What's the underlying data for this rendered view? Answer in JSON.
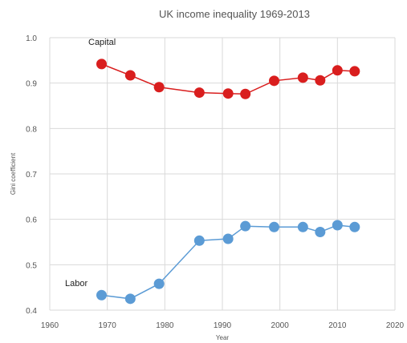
{
  "chart_data": {
    "type": "line",
    "title": "UK income inequality 1969-2013",
    "xlabel": "Year",
    "ylabel": "Gini coefficient",
    "xlim": [
      1960,
      2020
    ],
    "ylim": [
      0.4,
      1.0
    ],
    "xticks": [
      1960,
      1970,
      1980,
      1990,
      2000,
      2010,
      2020
    ],
    "yticks": [
      "0.4",
      "0.5",
      "0.6",
      "0.7",
      "0.8",
      "0.9",
      "1.0"
    ],
    "grid": true,
    "legend": "none",
    "series": [
      {
        "name": "Capital",
        "color": "#d91e1e",
        "x": [
          1969,
          1974,
          1979,
          1986,
          1991,
          1994,
          1999,
          2004,
          2007,
          2010,
          2013
        ],
        "y": [
          0.942,
          0.917,
          0.891,
          0.879,
          0.877,
          0.876,
          0.905,
          0.912,
          0.906,
          0.928,
          0.926
        ]
      },
      {
        "name": "Labor",
        "color": "#5b9bd5",
        "x": [
          1969,
          1974,
          1979,
          1986,
          1991,
          1994,
          1999,
          2004,
          2007,
          2010,
          2013
        ],
        "y": [
          0.433,
          0.425,
          0.458,
          0.553,
          0.557,
          0.585,
          0.583,
          0.583,
          0.572,
          0.587,
          0.583
        ]
      }
    ]
  }
}
